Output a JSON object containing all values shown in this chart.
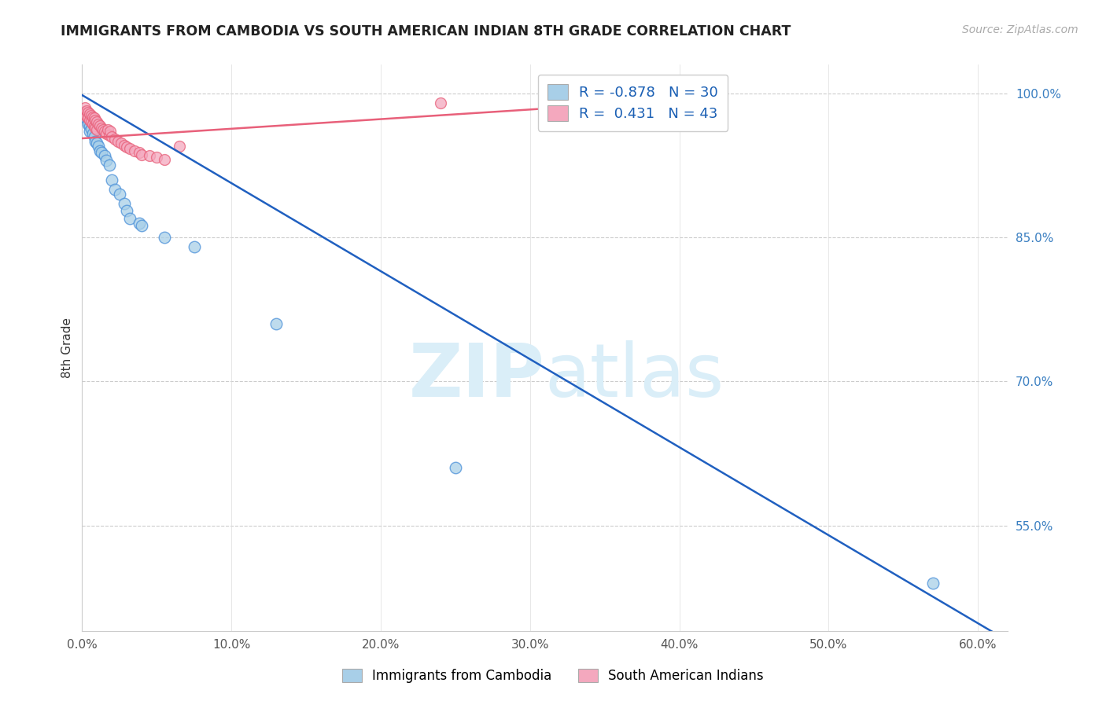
{
  "title": "IMMIGRANTS FROM CAMBODIA VS SOUTH AMERICAN INDIAN 8TH GRADE CORRELATION CHART",
  "source": "Source: ZipAtlas.com",
  "ylabel": "8th Grade",
  "xlim": [
    0.0,
    0.62
  ],
  "ylim": [
    0.44,
    1.03
  ],
  "xtick_labels": [
    "0.0%",
    "",
    "",
    "",
    "",
    "",
    "10.0%",
    "",
    "",
    "",
    "",
    "",
    "20.0%",
    "",
    "",
    "",
    "",
    "",
    "30.0%",
    "",
    "",
    "",
    "",
    "",
    "40.0%",
    "",
    "",
    "",
    "",
    "",
    "50.0%",
    "",
    "",
    "",
    "",
    "",
    "60.0%"
  ],
  "right_ytick_labels": [
    "100.0%",
    "85.0%",
    "70.0%",
    "55.0%"
  ],
  "right_ytick_values": [
    1.0,
    0.85,
    0.7,
    0.55
  ],
  "legend_label1": "Immigrants from Cambodia",
  "legend_label2": "South American Indians",
  "R1": "-0.878",
  "N1": "30",
  "R2": "0.431",
  "N2": "43",
  "color_blue": "#a8cfe8",
  "color_pink": "#f4a8be",
  "line_blue": "#4a90d9",
  "line_pink": "#e8607a",
  "trendline_blue": "#2060c0",
  "trendline_pink": "#e8607a",
  "watermark_color": "#daeef8",
  "cambodia_x": [
    0.002,
    0.003,
    0.004,
    0.004,
    0.005,
    0.005,
    0.006,
    0.007,
    0.008,
    0.009,
    0.01,
    0.011,
    0.012,
    0.013,
    0.015,
    0.016,
    0.018,
    0.02,
    0.022,
    0.025,
    0.028,
    0.03,
    0.032,
    0.038,
    0.04,
    0.055,
    0.075,
    0.13,
    0.25,
    0.57
  ],
  "cambodia_y": [
    0.975,
    0.98,
    0.97,
    0.968,
    0.965,
    0.96,
    0.963,
    0.958,
    0.955,
    0.95,
    0.948,
    0.945,
    0.94,
    0.938,
    0.935,
    0.93,
    0.925,
    0.91,
    0.9,
    0.895,
    0.885,
    0.878,
    0.87,
    0.865,
    0.862,
    0.85,
    0.84,
    0.76,
    0.61,
    0.49
  ],
  "sai_x": [
    0.001,
    0.002,
    0.002,
    0.003,
    0.003,
    0.004,
    0.004,
    0.005,
    0.005,
    0.006,
    0.006,
    0.007,
    0.007,
    0.008,
    0.008,
    0.009,
    0.009,
    0.01,
    0.01,
    0.011,
    0.012,
    0.013,
    0.014,
    0.015,
    0.016,
    0.017,
    0.018,
    0.019,
    0.02,
    0.022,
    0.024,
    0.026,
    0.028,
    0.03,
    0.032,
    0.035,
    0.038,
    0.04,
    0.045,
    0.05,
    0.055,
    0.065,
    0.24
  ],
  "sai_y": [
    0.98,
    0.985,
    0.978,
    0.982,
    0.976,
    0.98,
    0.974,
    0.978,
    0.972,
    0.977,
    0.97,
    0.975,
    0.968,
    0.974,
    0.966,
    0.972,
    0.964,
    0.97,
    0.962,
    0.968,
    0.966,
    0.964,
    0.962,
    0.96,
    0.958,
    0.962,
    0.956,
    0.96,
    0.955,
    0.952,
    0.95,
    0.948,
    0.946,
    0.944,
    0.942,
    0.94,
    0.938,
    0.936,
    0.935,
    0.933,
    0.931,
    0.945,
    0.99
  ],
  "blue_trendline_x": [
    0.0,
    0.62
  ],
  "blue_trendline_y": [
    0.998,
    0.43
  ],
  "pink_trendline_x": [
    0.0,
    0.42
  ],
  "pink_trendline_y": [
    0.953,
    0.995
  ]
}
